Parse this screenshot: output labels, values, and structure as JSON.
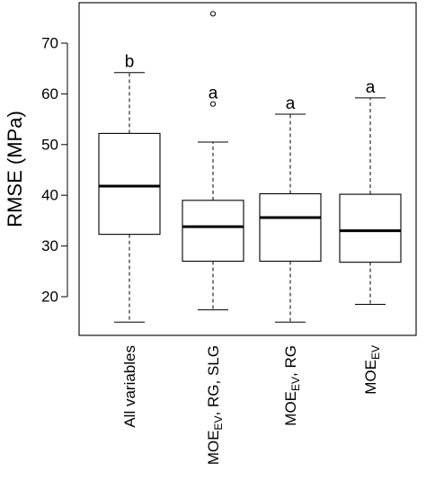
{
  "chart_data": {
    "type": "box",
    "ylabel": "RMSE (MPa)",
    "ylim": [
      12,
      78
    ],
    "yticks": [
      20,
      30,
      40,
      50,
      60,
      70
    ],
    "categories": [
      {
        "label": "All variables",
        "main": "All variables",
        "sub": "",
        "rest": ""
      },
      {
        "label": "MOEEV, RG, SLG",
        "main": "MOE",
        "sub": "EV",
        "rest": ", RG, SLG"
      },
      {
        "label": "MOEEV, RG",
        "main": "MOE",
        "sub": "EV",
        "rest": ", RG"
      },
      {
        "label": "MOEEV",
        "main": "MOE",
        "sub": "EV",
        "rest": ""
      }
    ],
    "boxes": [
      {
        "min": 15,
        "q1": 32.3,
        "median": 41.8,
        "q3": 52.2,
        "max": 64.2,
        "outliers": [],
        "letter": "b"
      },
      {
        "min": 17.4,
        "q1": 27,
        "median": 33.8,
        "q3": 39,
        "max": 50.5,
        "outliers": [
          58,
          75.8
        ],
        "letter": "a"
      },
      {
        "min": 15,
        "q1": 27,
        "median": 35.6,
        "q3": 40.3,
        "max": 56,
        "outliers": [],
        "letter": "a"
      },
      {
        "min": 18.5,
        "q1": 26.8,
        "median": 33,
        "q3": 40.2,
        "max": 59.2,
        "outliers": [],
        "letter": "a"
      }
    ]
  }
}
